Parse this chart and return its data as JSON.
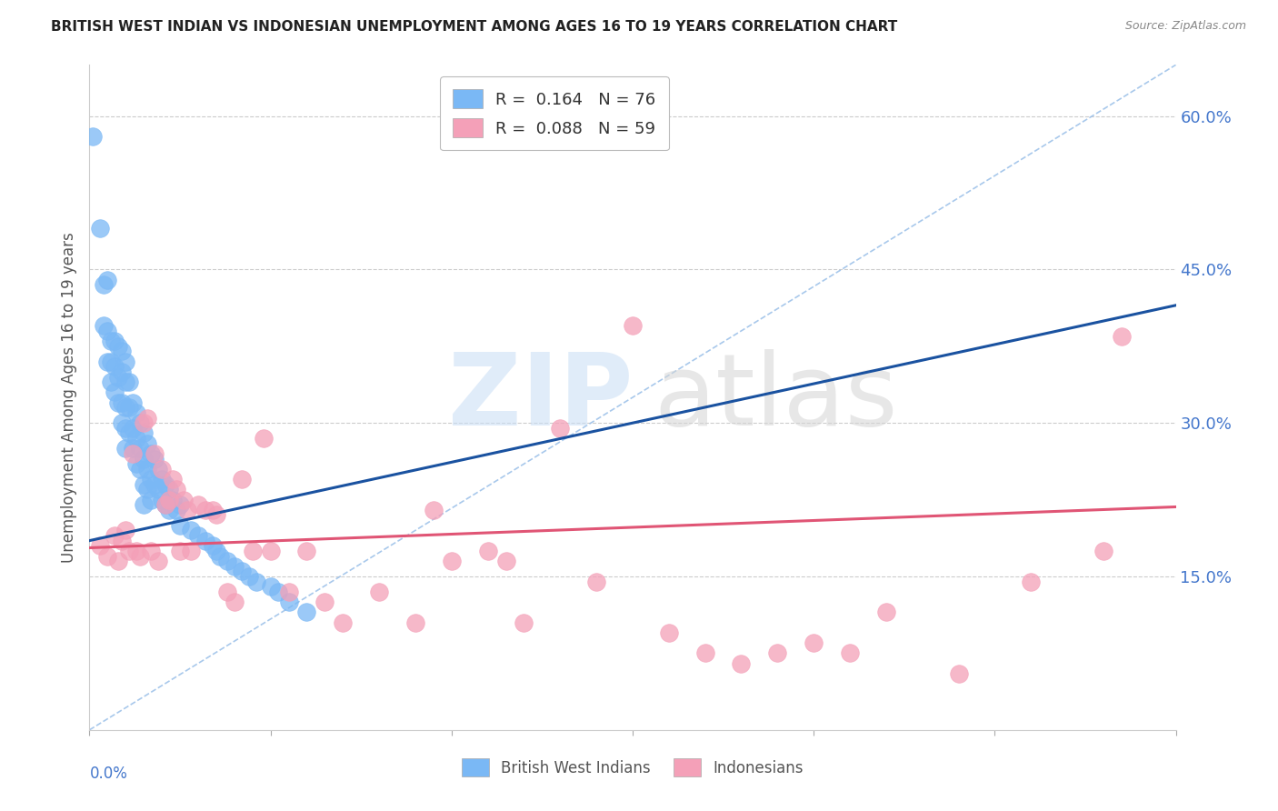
{
  "title": "BRITISH WEST INDIAN VS INDONESIAN UNEMPLOYMENT AMONG AGES 16 TO 19 YEARS CORRELATION CHART",
  "source": "Source: ZipAtlas.com",
  "ylabel": "Unemployment Among Ages 16 to 19 years",
  "xmin": 0.0,
  "xmax": 0.3,
  "ymin": 0.0,
  "ymax": 0.65,
  "right_yticks": [
    0.15,
    0.3,
    0.45,
    0.6
  ],
  "right_yticklabels": [
    "15.0%",
    "30.0%",
    "45.0%",
    "60.0%"
  ],
  "legend_r1": "R =  0.164",
  "legend_n1": "N = 76",
  "legend_r2": "R =  0.088",
  "legend_n2": "N = 59",
  "blue_color": "#7ab8f5",
  "pink_color": "#f4a0b8",
  "blue_line_color": "#1a52a0",
  "pink_line_color": "#e05575",
  "diag_color": "#99bfe8",
  "axis_label_color": "#4477cc",
  "ylabel_color": "#555555",
  "title_color": "#222222",
  "source_color": "#888888",
  "grid_color": "#cccccc",
  "spine_color": "#cccccc",
  "blue_scatter_x": [
    0.001,
    0.003,
    0.004,
    0.004,
    0.005,
    0.005,
    0.005,
    0.006,
    0.006,
    0.006,
    0.007,
    0.007,
    0.007,
    0.008,
    0.008,
    0.008,
    0.009,
    0.009,
    0.009,
    0.009,
    0.01,
    0.01,
    0.01,
    0.01,
    0.01,
    0.011,
    0.011,
    0.011,
    0.012,
    0.012,
    0.012,
    0.013,
    0.013,
    0.013,
    0.014,
    0.014,
    0.014,
    0.015,
    0.015,
    0.015,
    0.015,
    0.016,
    0.016,
    0.016,
    0.017,
    0.017,
    0.017,
    0.018,
    0.018,
    0.019,
    0.019,
    0.02,
    0.02,
    0.021,
    0.021,
    0.022,
    0.022,
    0.023,
    0.024,
    0.025,
    0.025,
    0.028,
    0.03,
    0.032,
    0.034,
    0.035,
    0.036,
    0.038,
    0.04,
    0.042,
    0.044,
    0.046,
    0.05,
    0.052,
    0.055,
    0.06
  ],
  "blue_scatter_y": [
    0.58,
    0.49,
    0.435,
    0.395,
    0.44,
    0.39,
    0.36,
    0.38,
    0.36,
    0.34,
    0.38,
    0.355,
    0.33,
    0.375,
    0.345,
    0.32,
    0.37,
    0.35,
    0.32,
    0.3,
    0.36,
    0.34,
    0.315,
    0.295,
    0.275,
    0.34,
    0.315,
    0.29,
    0.32,
    0.295,
    0.275,
    0.31,
    0.285,
    0.26,
    0.3,
    0.275,
    0.255,
    0.29,
    0.265,
    0.24,
    0.22,
    0.28,
    0.255,
    0.235,
    0.27,
    0.245,
    0.225,
    0.265,
    0.24,
    0.255,
    0.235,
    0.245,
    0.225,
    0.24,
    0.22,
    0.235,
    0.215,
    0.225,
    0.215,
    0.22,
    0.2,
    0.195,
    0.19,
    0.185,
    0.18,
    0.175,
    0.17,
    0.165,
    0.16,
    0.155,
    0.15,
    0.145,
    0.14,
    0.135,
    0.125,
    0.115
  ],
  "pink_scatter_x": [
    0.003,
    0.005,
    0.007,
    0.008,
    0.009,
    0.01,
    0.011,
    0.012,
    0.013,
    0.014,
    0.015,
    0.016,
    0.017,
    0.018,
    0.019,
    0.02,
    0.021,
    0.022,
    0.023,
    0.024,
    0.025,
    0.026,
    0.027,
    0.028,
    0.03,
    0.032,
    0.034,
    0.035,
    0.038,
    0.04,
    0.042,
    0.045,
    0.048,
    0.05,
    0.055,
    0.06,
    0.065,
    0.07,
    0.08,
    0.09,
    0.095,
    0.1,
    0.11,
    0.115,
    0.12,
    0.13,
    0.14,
    0.15,
    0.16,
    0.17,
    0.18,
    0.19,
    0.2,
    0.21,
    0.22,
    0.24,
    0.26,
    0.28,
    0.285
  ],
  "pink_scatter_y": [
    0.18,
    0.17,
    0.19,
    0.165,
    0.185,
    0.195,
    0.175,
    0.27,
    0.175,
    0.17,
    0.3,
    0.305,
    0.175,
    0.27,
    0.165,
    0.255,
    0.22,
    0.225,
    0.245,
    0.235,
    0.175,
    0.225,
    0.215,
    0.175,
    0.22,
    0.215,
    0.215,
    0.21,
    0.135,
    0.125,
    0.245,
    0.175,
    0.285,
    0.175,
    0.135,
    0.175,
    0.125,
    0.105,
    0.135,
    0.105,
    0.215,
    0.165,
    0.175,
    0.165,
    0.105,
    0.295,
    0.145,
    0.395,
    0.095,
    0.075,
    0.065,
    0.075,
    0.085,
    0.075,
    0.115,
    0.055,
    0.145,
    0.175,
    0.385
  ],
  "blue_line_x": [
    0.0,
    0.3
  ],
  "blue_line_y": [
    0.185,
    0.415
  ],
  "pink_line_x": [
    0.0,
    0.3
  ],
  "pink_line_y": [
    0.178,
    0.218
  ],
  "diag_line_x": [
    0.0,
    0.3
  ],
  "diag_line_y": [
    0.0,
    0.65
  ]
}
